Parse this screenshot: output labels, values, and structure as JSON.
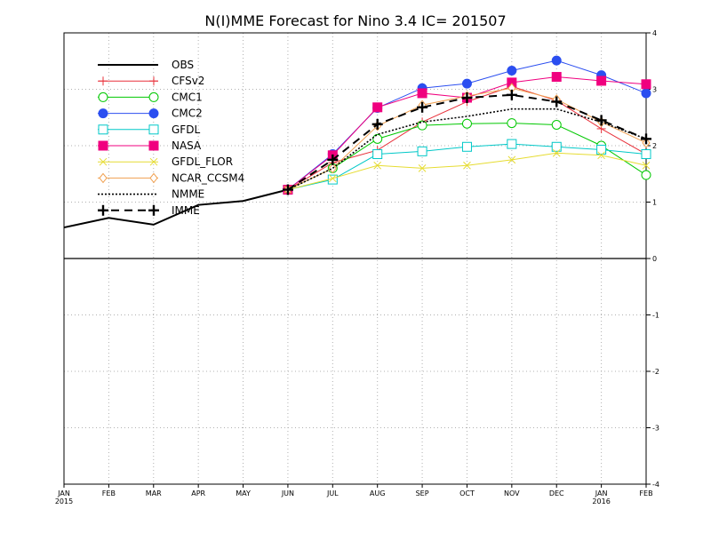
{
  "chart_data": {
    "type": "line",
    "title": "N(I)MME Forecast for Nino 3.4  IC= 201507",
    "xlabel": "",
    "ylabel": "",
    "x_ticks": [
      {
        "label": "JAN",
        "sub": "2015"
      },
      {
        "label": "FEB",
        "sub": ""
      },
      {
        "label": "MAR",
        "sub": ""
      },
      {
        "label": "APR",
        "sub": ""
      },
      {
        "label": "MAY",
        "sub": ""
      },
      {
        "label": "JUN",
        "sub": ""
      },
      {
        "label": "JUL",
        "sub": ""
      },
      {
        "label": "AUG",
        "sub": ""
      },
      {
        "label": "SEP",
        "sub": ""
      },
      {
        "label": "OCT",
        "sub": ""
      },
      {
        "label": "NOV",
        "sub": ""
      },
      {
        "label": "DEC",
        "sub": ""
      },
      {
        "label": "JAN",
        "sub": "2016"
      },
      {
        "label": "FEB",
        "sub": ""
      }
    ],
    "y_ticks": [
      "-4",
      "-3",
      "-2",
      "-1",
      "0",
      "1",
      "2",
      "3",
      "4"
    ],
    "ylim": [
      -4,
      4
    ],
    "grid": true,
    "legend_position": "top-left",
    "series": [
      {
        "name": "OBS",
        "color": "#000000",
        "marker": "none",
        "dash": "solid",
        "x": [
          0,
          1,
          2,
          3,
          4,
          5
        ],
        "values": [
          0.55,
          0.72,
          0.6,
          0.95,
          1.02,
          1.22
        ]
      },
      {
        "name": "CFSv2",
        "color": "#e8303a",
        "marker": "plus",
        "dash": "solid",
        "x": [
          5,
          6,
          7,
          8,
          9,
          10,
          11,
          12,
          13
        ],
        "values": [
          1.22,
          1.7,
          1.92,
          2.42,
          2.78,
          3.05,
          2.8,
          2.3,
          1.85
        ]
      },
      {
        "name": "CMC1",
        "color": "#00c800",
        "marker": "circle-open",
        "dash": "solid",
        "x": [
          5,
          6,
          7,
          8,
          9,
          10,
          11,
          12,
          13
        ],
        "values": [
          1.22,
          1.6,
          2.12,
          2.36,
          2.39,
          2.4,
          2.37,
          2.0,
          1.48
        ]
      },
      {
        "name": "CMC2",
        "color": "#2b4ef0",
        "marker": "circle-filled",
        "dash": "solid",
        "x": [
          5,
          6,
          7,
          8,
          9,
          10,
          11,
          12,
          13
        ],
        "values": [
          1.22,
          1.85,
          2.67,
          3.02,
          3.1,
          3.33,
          3.51,
          3.25,
          2.93
        ]
      },
      {
        "name": "GFDL",
        "color": "#00c8c8",
        "marker": "square-open",
        "dash": "solid",
        "x": [
          5,
          6,
          7,
          8,
          9,
          10,
          11,
          12,
          13
        ],
        "values": [
          1.22,
          1.4,
          1.85,
          1.9,
          1.98,
          2.03,
          1.98,
          1.93,
          1.85
        ]
      },
      {
        "name": "NASA",
        "color": "#f0007f",
        "marker": "square-filled",
        "dash": "solid",
        "x": [
          5,
          6,
          7,
          8,
          9,
          10,
          11,
          12,
          13
        ],
        "values": [
          1.22,
          1.83,
          2.68,
          2.93,
          2.85,
          3.12,
          3.22,
          3.15,
          3.09
        ]
      },
      {
        "name": "GFDL_FLOR",
        "color": "#e6dc32",
        "marker": "x",
        "dash": "solid",
        "x": [
          5,
          6,
          7,
          8,
          9,
          10,
          11,
          12,
          13
        ],
        "values": [
          1.22,
          1.42,
          1.65,
          1.6,
          1.65,
          1.75,
          1.87,
          1.83,
          1.65
        ]
      },
      {
        "name": "NCAR_CCSM4",
        "color": "#f0a050",
        "marker": "diamond-open",
        "dash": "solid",
        "x": [
          5,
          6,
          7,
          8,
          9,
          10,
          11,
          12,
          13
        ],
        "values": [
          1.22,
          1.6,
          2.35,
          2.72,
          2.88,
          3.02,
          2.82,
          2.42,
          2.05
        ]
      },
      {
        "name": "NMME",
        "color": "#000000",
        "marker": "none",
        "dash": "dotted",
        "x": [
          5,
          6,
          7,
          8,
          9,
          10,
          11,
          12,
          13
        ],
        "values": [
          1.22,
          1.6,
          2.2,
          2.42,
          2.52,
          2.65,
          2.65,
          2.42,
          2.12
        ]
      },
      {
        "name": "IMME",
        "color": "#000000",
        "marker": "plus-bold",
        "dash": "dashed",
        "x": [
          5,
          6,
          7,
          8,
          9,
          10,
          11,
          12,
          13
        ],
        "values": [
          1.22,
          1.75,
          2.38,
          2.68,
          2.85,
          2.9,
          2.78,
          2.45,
          2.12
        ]
      }
    ]
  }
}
